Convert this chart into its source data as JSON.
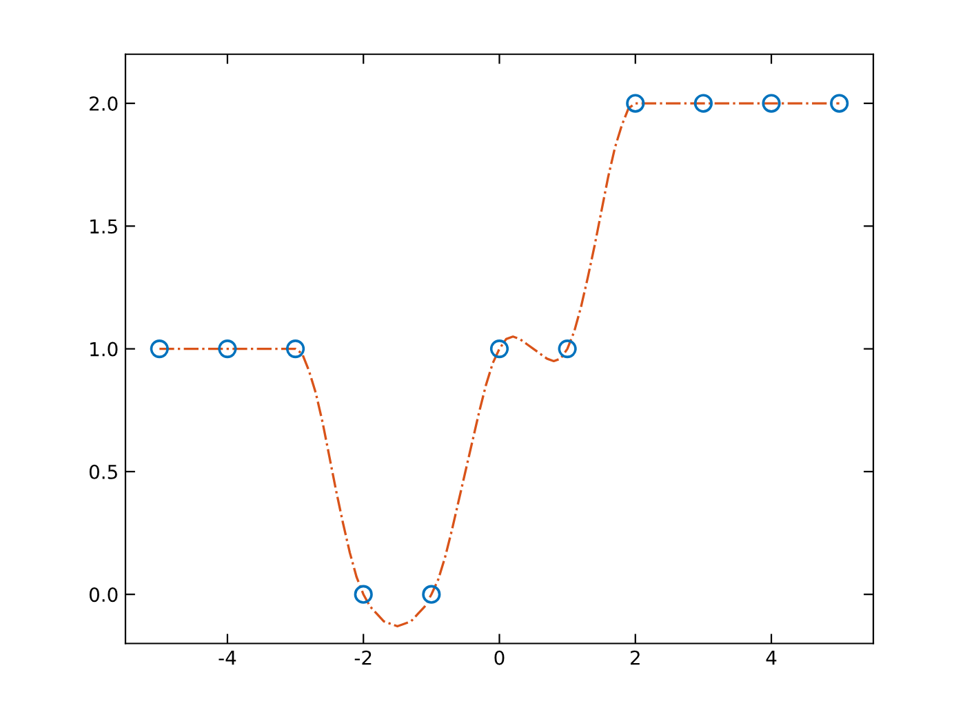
{
  "chart_data": {
    "type": "line",
    "xlim": [
      -5.5,
      5.5
    ],
    "xticks": [
      -4,
      -2,
      0,
      2,
      4
    ],
    "ylim": [
      -0.2,
      2.2
    ],
    "yticks": [
      {
        "value": 0,
        "label": "0.0"
      },
      {
        "value": 0.5,
        "label": "0.5"
      },
      {
        "value": 1,
        "label": "1.0"
      },
      {
        "value": 1.5,
        "label": "1.5"
      },
      {
        "value": 2,
        "label": "2.0"
      }
    ],
    "series": [
      {
        "type": "scatter",
        "color": "#0072bd",
        "marker": "circle",
        "x": [
          -5,
          -4,
          -3,
          -2,
          -1,
          0,
          1,
          2,
          3,
          4,
          5
        ],
        "values": [
          1,
          1,
          1,
          0,
          0,
          1,
          1,
          2,
          2,
          2,
          2
        ]
      },
      {
        "color": "#d95319",
        "marker": "none",
        "line_style": "dashdot",
        "x": [
          -5,
          -4,
          -3,
          -2.9,
          -2.8,
          -2.7,
          -2.6,
          -2.5,
          -2.4,
          -2.3,
          -2.2,
          -2.1,
          -2,
          -1.9,
          -1.8,
          -1.7,
          -1.6,
          -1.5,
          -1.4,
          -1.3,
          -1.2,
          -1.1,
          -1,
          -0.9,
          -0.8,
          -0.7,
          -0.6,
          -0.5,
          -0.4,
          -0.3,
          -0.2,
          -0.1,
          0,
          0.1,
          0.2,
          0.3,
          0.4,
          0.5,
          0.6,
          0.7,
          0.8,
          0.9,
          1,
          1.1,
          1.2,
          1.3,
          1.4,
          1.5,
          1.6,
          1.7,
          1.8,
          1.9,
          2,
          3,
          4,
          5
        ],
        "values": [
          1,
          1,
          1,
          0.98,
          0.91,
          0.82,
          0.7,
          0.56,
          0.42,
          0.29,
          0.17,
          0.07,
          0,
          -0.05,
          -0.08,
          -0.11,
          -0.12,
          -0.13,
          -0.12,
          -0.11,
          -0.08,
          -0.05,
          0,
          0.06,
          0.15,
          0.26,
          0.38,
          0.5,
          0.62,
          0.74,
          0.85,
          0.94,
          1,
          1.04,
          1.05,
          1.04,
          1.02,
          1,
          0.98,
          0.96,
          0.95,
          0.96,
          1,
          1.07,
          1.17,
          1.29,
          1.42,
          1.56,
          1.7,
          1.82,
          1.91,
          1.98,
          2,
          2,
          2,
          2
        ]
      }
    ]
  }
}
